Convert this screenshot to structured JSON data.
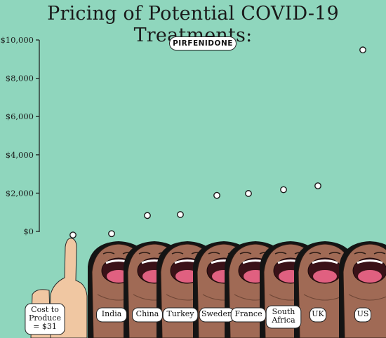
{
  "title": "Pricing of Potential COVID-19 Treatments:",
  "drug": "PIRFENIDONE",
  "colors": {
    "background": "#8fd6bd",
    "dot": "#ffffff",
    "skin": "#a06a55",
    "hair": "#141414",
    "mouth": "#e06080"
  },
  "chart_data": {
    "type": "scatter",
    "title": "Pricing of Potential COVID-19 Treatments:",
    "subtitle": "PIRFENIDONE",
    "ylim": [
      0,
      10000
    ],
    "yticks": [
      0,
      2000,
      4000,
      6000,
      8000,
      10000
    ],
    "ytick_labels": [
      "$0",
      "$2,000",
      "$4,000",
      "$6,000",
      "$8,000",
      "$10,000"
    ],
    "categories": [
      "Cost to Produce = $31",
      "India",
      "China",
      "Turkey",
      "Sweden",
      "France",
      "South Africa",
      "UK",
      "US"
    ],
    "category_lines": [
      [
        "Cost to",
        "Produce",
        "= $31"
      ],
      [
        "India"
      ],
      [
        "China"
      ],
      [
        "Turkey"
      ],
      [
        "Sweden"
      ],
      [
        "France"
      ],
      [
        "South",
        "Africa"
      ],
      [
        "UK"
      ],
      [
        "US"
      ]
    ],
    "values": [
      31,
      100,
      1050,
      1100,
      2100,
      2200,
      2400,
      2600,
      9700
    ],
    "grid": false,
    "legend": "none"
  }
}
